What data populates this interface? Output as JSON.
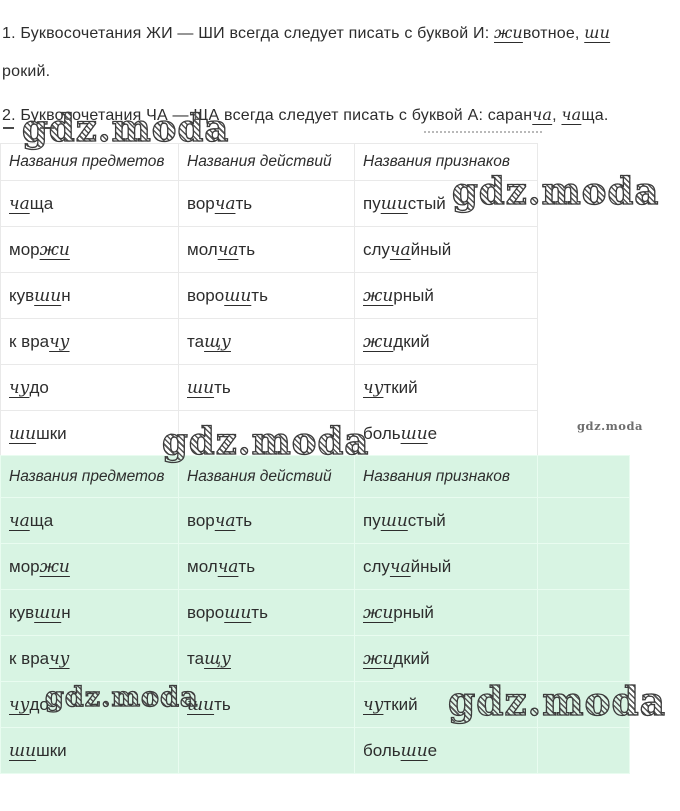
{
  "intro": {
    "line1": "1. Буквосочетания ЖИ — ШИ всегда следует писать с буквой И: [жи]вотное, [ши]",
    "line2": "рокий.",
    "line3": "2. Буквосочетания ЧА — ЩА всегда следует писать с буквой А: саран[ча], [ча]ща."
  },
  "table": {
    "headers": [
      "Названия предметов",
      "Названия действий",
      "Названия признаков"
    ],
    "rows": [
      [
        "[ча]ща",
        "вор[ча]ть",
        "пу[ши]стый"
      ],
      [
        "мор[жи]",
        "мол[ча]ть",
        "слу[ча]йный"
      ],
      [
        "кув[ши]н",
        "воро[ши]ть",
        "[жи]рный"
      ],
      [
        "к вра[чу]",
        "та[щу]",
        "[жи]дкий"
      ],
      [
        "[чу]до",
        "[ши]ть",
        "[чу]ткий"
      ],
      [
        "[ши]шки",
        "",
        "боль[ши]е"
      ]
    ]
  },
  "watermark": {
    "text": "gdz.moda",
    "small_text": "gdz.moda"
  },
  "colors": {
    "highlight_table_bg": "#d8f4e3",
    "table_border": "#e9e9e9",
    "highlight_table_border": "#e9fcf0",
    "text": "#2d2d2d"
  }
}
